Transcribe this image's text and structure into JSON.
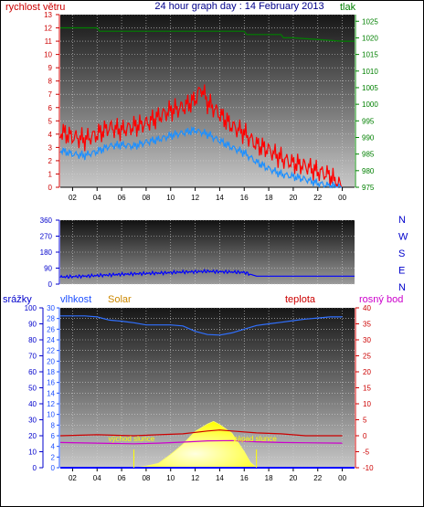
{
  "header": {
    "left_label": "rychlost větru",
    "title": "24 hour graph day : 14 February 2013",
    "right_label": "tlak"
  },
  "colors": {
    "wind": "#ff0000",
    "wind_avg": "#1e90ff",
    "pressure": "#008000",
    "direction": "#0000ff",
    "humidity": "#3070ff",
    "solar": "#ffff00",
    "temperature": "#cc0000",
    "dewpoint": "#cc00cc",
    "rain": "#0000ff",
    "grid": "#d0d0d0",
    "bg_top": "#1a1a1a",
    "bg_bottom": "#c8c8c8"
  },
  "compass_labels": [
    "N",
    "W",
    "S",
    "E",
    "N"
  ],
  "panel3_labels": {
    "rain": "srážky",
    "humidity": "vlhkost",
    "solar": "Solar",
    "temperature": "teplota",
    "dewpoint": "rosný bod",
    "sunrise": "východ slunce",
    "sunset": "západ slunce"
  },
  "chart_data": [
    {
      "type": "line",
      "name": "wind-pressure",
      "x_ticks": [
        "02",
        "04",
        "06",
        "08",
        "10",
        "12",
        "14",
        "16",
        "18",
        "20",
        "22",
        "00"
      ],
      "x_range_hours": [
        1,
        25
      ],
      "y_left": {
        "label": "rychlost větru",
        "range": [
          0,
          13
        ],
        "ticks": [
          0,
          1,
          2,
          3,
          4,
          5,
          6,
          7,
          8,
          9,
          10,
          11,
          12,
          13
        ]
      },
      "y_right": {
        "label": "tlak",
        "range": [
          975,
          1027
        ],
        "ticks": [
          975,
          980,
          985,
          990,
          995,
          1000,
          1005,
          1010,
          1015,
          1020,
          1025
        ]
      },
      "series": [
        {
          "name": "gust",
          "axis": "left",
          "x": [
            1,
            2,
            3,
            4,
            5,
            6,
            7,
            8,
            9,
            10,
            11,
            12,
            12.5,
            13,
            14,
            15,
            16,
            17,
            18,
            19,
            20,
            21,
            22,
            23,
            23.5,
            24
          ],
          "y": [
            4.2,
            3.8,
            3.6,
            4.0,
            4.5,
            4.3,
            4.6,
            4.8,
            5.3,
            5.8,
            6.0,
            6.6,
            7.5,
            6.4,
            5.5,
            4.6,
            4.1,
            3.2,
            2.8,
            2.2,
            1.8,
            1.6,
            1.2,
            0.9,
            0.3,
            0.1
          ]
        },
        {
          "name": "average",
          "axis": "left",
          "x": [
            1,
            2,
            3,
            4,
            5,
            6,
            7,
            8,
            9,
            10,
            11,
            12,
            13,
            14,
            15,
            16,
            17,
            18,
            19,
            20,
            21,
            22,
            23,
            24
          ],
          "y": [
            2.8,
            2.5,
            2.4,
            2.7,
            3.1,
            3.2,
            3.1,
            3.4,
            3.6,
            3.9,
            4.1,
            4.3,
            4.0,
            3.5,
            3.0,
            2.6,
            1.9,
            1.4,
            1.0,
            0.8,
            0.6,
            0.3,
            0.1,
            0.0
          ]
        },
        {
          "name": "pressure",
          "axis": "right",
          "x": [
            1,
            4,
            4.2,
            8,
            12,
            13,
            16,
            16.2,
            19,
            19.2,
            20,
            24,
            25
          ],
          "y": [
            1023,
            1023,
            1022,
            1022,
            1022,
            1022,
            1022,
            1021,
            1021,
            1020,
            1020,
            1019,
            1019
          ]
        }
      ]
    },
    {
      "type": "line",
      "name": "wind-direction",
      "x_range_hours": [
        1,
        25
      ],
      "y": {
        "range": [
          0,
          360
        ],
        "ticks": [
          0,
          90,
          180,
          270,
          360
        ]
      },
      "series": [
        {
          "name": "direction",
          "x": [
            1,
            2,
            3,
            4,
            5,
            6,
            7,
            8,
            9,
            10,
            11,
            12,
            13,
            14,
            15,
            16,
            17,
            18,
            19,
            20,
            21,
            22,
            23,
            24,
            25
          ],
          "y": [
            40,
            42,
            45,
            48,
            52,
            55,
            58,
            60,
            62,
            65,
            68,
            70,
            72,
            70,
            68,
            66,
            45,
            45,
            45,
            45,
            45,
            45,
            45,
            45,
            45
          ]
        }
      ]
    },
    {
      "type": "line",
      "name": "humidity-solar-temperature",
      "x_ticks": [
        "02",
        "04",
        "06",
        "08",
        "10",
        "12",
        "14",
        "16",
        "18",
        "20",
        "22",
        "00"
      ],
      "x_range_hours": [
        1,
        25
      ],
      "y_rain": {
        "label": "srážky",
        "range": [
          0,
          100
        ],
        "ticks": [
          0,
          10,
          20,
          30,
          40,
          50,
          60,
          70,
          80,
          90,
          100
        ]
      },
      "y_humidity": {
        "label": "vlhkost",
        "range": [
          0,
          30
        ],
        "ticks": [
          0,
          2,
          4,
          6,
          8,
          10,
          12,
          14,
          16,
          18,
          20,
          22,
          24,
          26,
          28,
          30
        ]
      },
      "y_temperature": {
        "label": "teplota",
        "range": [
          -10,
          40
        ],
        "ticks": [
          -10,
          -5,
          0,
          5,
          10,
          15,
          20,
          25,
          30,
          35,
          40
        ]
      },
      "series": [
        {
          "name": "humidity",
          "axis": "humidity",
          "x": [
            1,
            3,
            4,
            5,
            6,
            7,
            8,
            9,
            10,
            11,
            12,
            13,
            14,
            15,
            16,
            17,
            18,
            19,
            20,
            21,
            22,
            23,
            24
          ],
          "y": [
            28.5,
            28.5,
            28.3,
            27.7,
            27.5,
            27.2,
            26.8,
            26.8,
            26.8,
            26.6,
            25.6,
            25.0,
            24.9,
            25.3,
            26.0,
            26.7,
            27.0,
            27.3,
            27.6,
            27.9,
            28.1,
            28.3,
            28.3
          ]
        },
        {
          "name": "temperature",
          "axis": "temperature",
          "x": [
            1,
            4,
            7,
            9,
            11,
            13,
            14,
            15,
            17,
            19,
            21,
            24
          ],
          "y": [
            0.0,
            0.3,
            0.0,
            0.3,
            0.6,
            1.5,
            1.8,
            1.5,
            0.9,
            0.6,
            0.0,
            0.0
          ]
        },
        {
          "name": "dewpoint",
          "axis": "temperature",
          "x": [
            1,
            4,
            7,
            9,
            11,
            13,
            15,
            17,
            19,
            21,
            24
          ],
          "y": [
            -2.1,
            -2.3,
            -2.5,
            -2.3,
            -2.0,
            -1.6,
            -1.5,
            -1.9,
            -2.1,
            -2.2,
            -2.3
          ]
        },
        {
          "name": "solar",
          "axis": "humidity",
          "x": [
            7,
            8,
            9,
            10,
            11,
            12,
            13,
            13.5,
            14,
            15,
            16,
            16.5,
            17
          ],
          "y": [
            0,
            0.3,
            0.8,
            2.5,
            4.4,
            6.8,
            8.2,
            8.7,
            8.1,
            6.5,
            3.0,
            1.0,
            0
          ]
        },
        {
          "name": "rain",
          "axis": "rain",
          "x": [
            1,
            25
          ],
          "y": [
            0,
            0
          ]
        }
      ],
      "annotations": [
        {
          "text": "východ slunce",
          "x": 7
        },
        {
          "text": "západ slunce",
          "x": 17
        }
      ]
    }
  ]
}
